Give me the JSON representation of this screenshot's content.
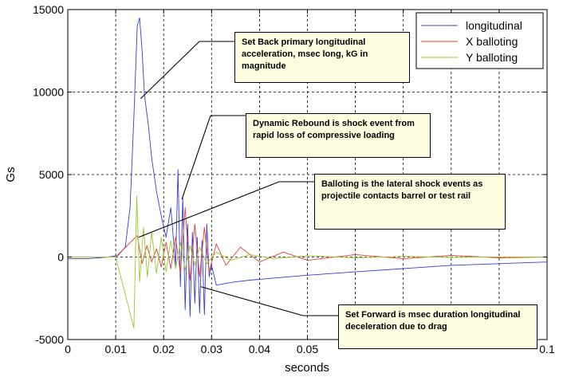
{
  "chart_data": {
    "type": "line",
    "xlabel": "seconds",
    "ylabel": "Gs",
    "xlim": [
      0,
      0.1
    ],
    "ylim": [
      -5000,
      15000
    ],
    "x_ticks": [
      0,
      0.01,
      0.02,
      0.03,
      0.04,
      0.05,
      0.06,
      0.07,
      0.08,
      0.09,
      0.1
    ],
    "x_tick_labels": [
      "0",
      "0.01",
      "0.02",
      "0.03",
      "0.04",
      "0.05",
      "",
      "",
      "",
      "",
      "0.1"
    ],
    "y_ticks": [
      -5000,
      0,
      5000,
      10000,
      15000
    ],
    "y_tick_labels": [
      "-5000",
      "0",
      "5000",
      "10000",
      "15000"
    ],
    "grid": true,
    "legend_position": "top-right",
    "series": [
      {
        "name": "longitudinal",
        "color": "#3a3ad8",
        "x": [
          0,
          0.004,
          0.0085,
          0.0105,
          0.012,
          0.013,
          0.0138,
          0.0145,
          0.015,
          0.0155,
          0.016,
          0.0168,
          0.0175,
          0.0185,
          0.0195,
          0.0205,
          0.0215,
          0.0225,
          0.023,
          0.0235,
          0.024,
          0.0245,
          0.025,
          0.0255,
          0.026,
          0.0265,
          0.027,
          0.0275,
          0.028,
          0.0285,
          0.029,
          0.0295,
          0.03,
          0.031,
          0.033,
          0.035,
          0.038,
          0.042,
          0.046,
          0.05,
          0.055,
          0.06,
          0.07,
          0.08,
          0.09,
          0.1
        ],
        "y": [
          -100,
          -100,
          0,
          100,
          600,
          3000,
          8500,
          14000,
          14500,
          12500,
          9800,
          8000,
          6000,
          4000,
          2500,
          1200,
          3000,
          -500,
          5300,
          -1800,
          3600,
          -3200,
          2000,
          -3600,
          1500,
          -2800,
          1200,
          -3400,
          1000,
          -3500,
          2000,
          -1200,
          -500,
          -1700,
          -1600,
          -1500,
          -1400,
          -1300,
          -1200,
          -1100,
          -1000,
          -900,
          -700,
          -500,
          -400,
          -300
        ]
      },
      {
        "name": "X balloting",
        "color": "#e04030",
        "x": [
          0,
          0.01,
          0.0145,
          0.0155,
          0.0165,
          0.0175,
          0.0185,
          0.0195,
          0.0205,
          0.0215,
          0.0225,
          0.0235,
          0.0245,
          0.0255,
          0.0265,
          0.0275,
          0.0285,
          0.0295,
          0.031,
          0.033,
          0.036,
          0.04,
          0.045,
          0.05,
          0.06,
          0.07,
          0.08,
          0.09,
          0.1
        ],
        "y": [
          0,
          0,
          1300,
          -400,
          700,
          -300,
          500,
          -600,
          900,
          -700,
          1200,
          -1000,
          3000,
          -1400,
          2000,
          -1200,
          1800,
          -900,
          800,
          -500,
          600,
          -300,
          300,
          -200,
          150,
          -100,
          100,
          -50,
          0
        ]
      },
      {
        "name": "Y balloting",
        "color": "#9ac82c",
        "x": [
          0,
          0.01,
          0.0138,
          0.0144,
          0.015,
          0.0158,
          0.0166,
          0.0175,
          0.0185,
          0.0195,
          0.0205,
          0.0215,
          0.0225,
          0.0235,
          0.0245,
          0.0255,
          0.0265,
          0.0275,
          0.029,
          0.031,
          0.034,
          0.038,
          0.043,
          0.05,
          0.06,
          0.07,
          0.08,
          0.09,
          0.1
        ],
        "y": [
          0,
          0,
          -4300,
          3700,
          -1500,
          1800,
          -1200,
          1500,
          -1000,
          1200,
          -900,
          1000,
          -700,
          900,
          -800,
          700,
          -500,
          600,
          -400,
          300,
          -200,
          150,
          -100,
          80,
          -50,
          40,
          -20,
          10,
          0
        ]
      }
    ],
    "annotations": [
      {
        "text": "Set Back primary longitudinal acceleration, msec long, kG in magnitude",
        "point": [
          0.0152,
          9600
        ]
      },
      {
        "text": "Dynamic Rebound is shock event from rapid loss of compressive loading",
        "point": [
          0.0238,
          3500
        ]
      },
      {
        "text": "Balloting is the lateral shock events as projectile contacts barrel or test rail",
        "point": [
          0.0148,
          1200
        ]
      },
      {
        "text": "Set Forward is msec duration longitudinal deceleration due to drag",
        "point": [
          0.0278,
          -1800
        ]
      }
    ]
  }
}
